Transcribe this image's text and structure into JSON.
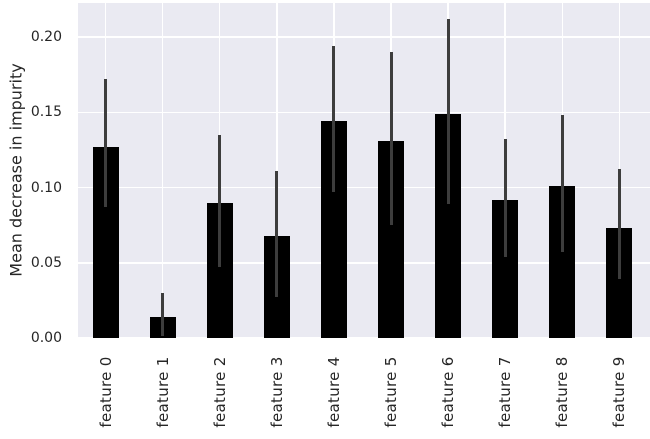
{
  "chart_data": {
    "type": "bar",
    "title": "",
    "xlabel": "",
    "ylabel": "Mean decrease in impurity",
    "categories": [
      "feature 0",
      "feature 1",
      "feature 2",
      "feature 3",
      "feature 4",
      "feature 5",
      "feature 6",
      "feature 7",
      "feature 8",
      "feature 9"
    ],
    "values": [
      0.127,
      0.014,
      0.09,
      0.068,
      0.144,
      0.131,
      0.149,
      0.092,
      0.101,
      0.073
    ],
    "error_bars": {
      "low": [
        0.087,
        0.001,
        0.047,
        0.027,
        0.097,
        0.075,
        0.089,
        0.054,
        0.057,
        0.039
      ],
      "high": [
        0.172,
        0.03,
        0.135,
        0.111,
        0.194,
        0.19,
        0.212,
        0.132,
        0.148,
        0.112
      ]
    },
    "ytick_labels": [
      "0.00",
      "0.05",
      "0.10",
      "0.15",
      "0.20"
    ],
    "ytick_values": [
      0.0,
      0.05,
      0.1,
      0.15,
      0.2
    ],
    "ylim": [
      0,
      0.2226
    ],
    "grid": true,
    "legend": false,
    "x_tick_rotation": 90,
    "colors": {
      "bar": "#000000",
      "error_bar": "#3d3d3d",
      "plot_background": "#eaeaf2",
      "grid": "#ffffff",
      "text": "#262626",
      "figure_background": "#ffffff"
    }
  }
}
